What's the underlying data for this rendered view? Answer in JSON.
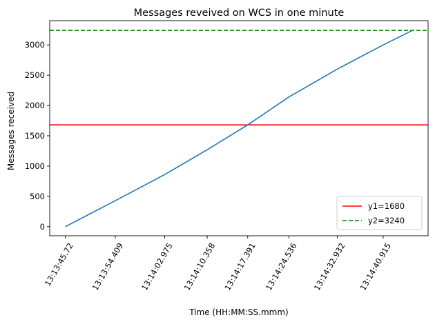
{
  "chart_data": {
    "type": "line",
    "title": "Messages reveived on WCS in one minute",
    "xlabel": "Time (HH:MM:SS.mmm)",
    "ylabel": "Messages received",
    "x_tick_labels": [
      "13:13:45.72",
      "13:13:54.409",
      "13:14:02.975",
      "13:14:10.358",
      "13:14:17.391",
      "13:14:24.536",
      "13:14:32.932",
      "13:14:40.915"
    ],
    "ylim": [
      -150,
      3400
    ],
    "yticks": [
      0,
      500,
      1000,
      1500,
      2000,
      2500,
      3000
    ],
    "grid": false,
    "legend_position": "bottom-right",
    "series": [
      {
        "color": "#1f77b4",
        "style": "solid",
        "x": [
          "13:13:45.72",
          "13:13:54.409",
          "13:14:02.975",
          "13:14:10.358",
          "13:14:17.391",
          "13:14:24.536",
          "13:14:32.932",
          "13:14:40.915",
          "13:14:46.000"
        ],
        "values": [
          0,
          430,
          860,
          1270,
          1680,
          2140,
          2600,
          3000,
          3240
        ]
      }
    ],
    "reference_lines": [
      {
        "name": "y1=1680",
        "y": 1680,
        "color": "#ff0000",
        "style": "solid"
      },
      {
        "name": "y2=3240",
        "y": 3240,
        "color": "#008000",
        "style": "dashed"
      }
    ]
  }
}
